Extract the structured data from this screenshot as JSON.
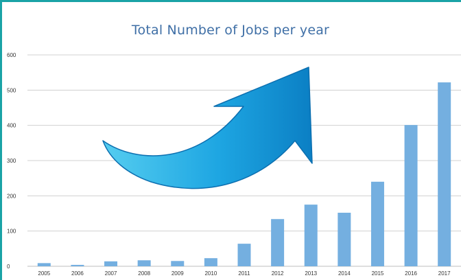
{
  "chart_data": {
    "type": "bar",
    "title": "Total Number of Jobs per year",
    "xlabel": "",
    "ylabel": "",
    "categories": [
      "2005",
      "2006",
      "2007",
      "2008",
      "2009",
      "2010",
      "2011",
      "2012",
      "2013",
      "2014",
      "2015",
      "2016",
      "2017"
    ],
    "values": [
      9,
      4,
      14,
      17,
      15,
      23,
      64,
      134,
      175,
      152,
      240,
      401,
      522
    ],
    "ylim": [
      0,
      600
    ],
    "yticks": [
      "0",
      "100",
      "200",
      "300",
      "400",
      "500",
      "600"
    ],
    "grid": true,
    "bar_color": "#74afe0",
    "grid_color": "#d0d0d0",
    "decoration": {
      "name": "upward-trend-arrow",
      "colors": [
        "#55cdf0",
        "#0b7fc4"
      ]
    }
  },
  "frame": {
    "border_color": "#1aa3a6"
  }
}
